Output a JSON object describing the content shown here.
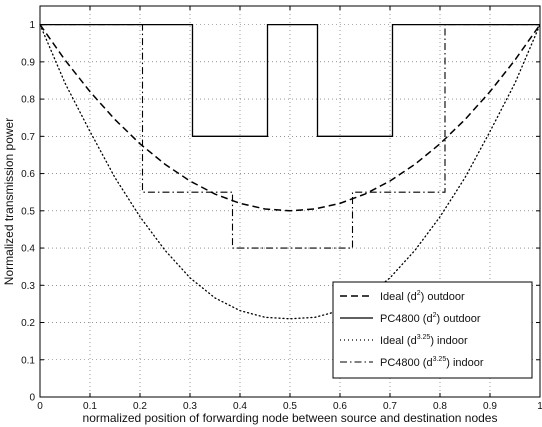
{
  "chart_data": {
    "type": "line",
    "xlabel": "normalized position of forwarding node between source and destination nodes",
    "ylabel": "Normalized transmission power",
    "xlim": [
      0,
      1
    ],
    "ylim": [
      0,
      1.05
    ],
    "grid": true,
    "legend_position": "bottom-right",
    "xticks": [
      "0",
      "0.1",
      "0.2",
      "0.3",
      "0.4",
      "0.5",
      "0.6",
      "0.7",
      "0.8",
      "0.9",
      "1"
    ],
    "yticks": [
      "0",
      "0.1",
      "0.2",
      "0.3",
      "0.4",
      "0.5",
      "0.6",
      "0.7",
      "0.8",
      "0.9",
      "1"
    ],
    "series": [
      {
        "name": "Ideal (d2) outdoor",
        "legend_parts": [
          "Ideal (d",
          "2",
          ") outdoor"
        ],
        "style": "dashed",
        "x": [
          0,
          0.05,
          0.1,
          0.15,
          0.2,
          0.25,
          0.3,
          0.35,
          0.4,
          0.45,
          0.5,
          0.55,
          0.6,
          0.65,
          0.7,
          0.75,
          0.8,
          0.85,
          0.9,
          0.95,
          1
        ],
        "y": [
          1,
          0.905,
          0.82,
          0.745,
          0.68,
          0.625,
          0.58,
          0.545,
          0.52,
          0.505,
          0.5,
          0.505,
          0.52,
          0.545,
          0.58,
          0.625,
          0.68,
          0.745,
          0.82,
          0.905,
          1
        ]
      },
      {
        "name": "PC4800 (d2) outdoor",
        "legend_parts": [
          "PC4800 (d",
          "2",
          ") outdoor"
        ],
        "style": "solid",
        "x": [
          0,
          0.305,
          0.305,
          0.455,
          0.455,
          0.555,
          0.555,
          0.705,
          0.705,
          1
        ],
        "y": [
          1,
          1,
          0.7,
          0.7,
          1,
          1,
          0.7,
          0.7,
          1,
          1
        ]
      },
      {
        "name": "Ideal (d3.25) indoor",
        "legend_parts": [
          "Ideal (d",
          "3.25",
          ") indoor"
        ],
        "style": "dotted",
        "x": [
          0,
          0.05,
          0.1,
          0.15,
          0.2,
          0.25,
          0.3,
          0.35,
          0.4,
          0.45,
          0.5,
          0.55,
          0.6,
          0.65,
          0.7,
          0.75,
          0.8,
          0.85,
          0.9,
          0.95,
          1
        ],
        "y": [
          1,
          0.843,
          0.713,
          0.589,
          0.484,
          0.394,
          0.32,
          0.266,
          0.232,
          0.214,
          0.21,
          0.214,
          0.232,
          0.266,
          0.32,
          0.394,
          0.484,
          0.589,
          0.713,
          0.843,
          1
        ]
      },
      {
        "name": "PC4800 (d3.25) indoor",
        "legend_parts": [
          "PC4800 (d",
          "3.25",
          ") indoor"
        ],
        "style": "dashdot",
        "x": [
          0,
          0.205,
          0.205,
          0.385,
          0.385,
          0.625,
          0.625,
          0.81,
          0.81,
          1
        ],
        "y": [
          1,
          1,
          0.55,
          0.55,
          0.4,
          0.4,
          0.55,
          0.55,
          1,
          1
        ]
      }
    ]
  }
}
